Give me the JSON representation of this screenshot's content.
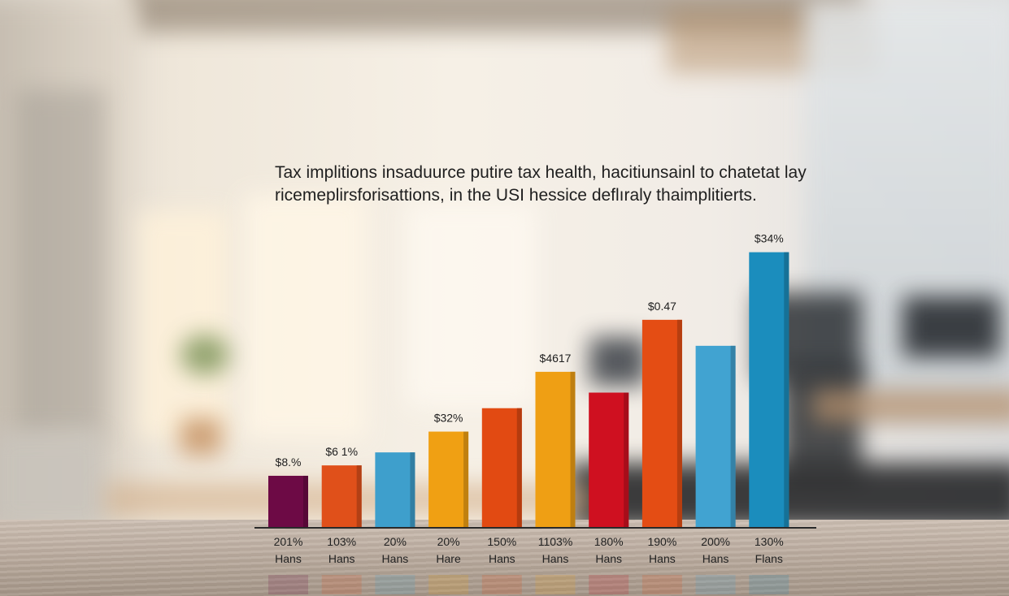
{
  "chart_data": {
    "type": "bar",
    "title": "Tax implitions insaduurce putire tax health, hacitiunsainl to chatetat lay ricemeplirsforisattions, in the USI hessice deflıraly thaimplitierts.",
    "categories": [
      [
        "201%",
        "Hans"
      ],
      [
        "103%",
        "Hans"
      ],
      [
        "20%",
        "Hans"
      ],
      [
        "20%",
        "Hare"
      ],
      [
        "150%",
        "Hans"
      ],
      [
        "1103%",
        "Hans"
      ],
      [
        "180%",
        "Hans"
      ],
      [
        "190%",
        "Hans"
      ],
      [
        "200%",
        "Hans"
      ],
      [
        "130%",
        "Flans"
      ]
    ],
    "values": [
      10,
      12,
      14.5,
      18.5,
      23,
      30,
      26,
      40,
      35,
      53
    ],
    "data_labels": [
      "$8.%",
      "$6 1%",
      "",
      "$32%",
      "",
      "$4617",
      "",
      "$0.47",
      "",
      "$34%"
    ],
    "colors": [
      "#6d0a45",
      "#e0501a",
      "#3e9fcc",
      "#f0a013",
      "#e24a12",
      "#ef9f14",
      "#cf1020",
      "#e44d14",
      "#41a3d1",
      "#1b8dbd"
    ],
    "ylim": [
      0,
      57
    ],
    "grid": false,
    "legend": "none",
    "xlabel": "",
    "ylabel": ""
  }
}
